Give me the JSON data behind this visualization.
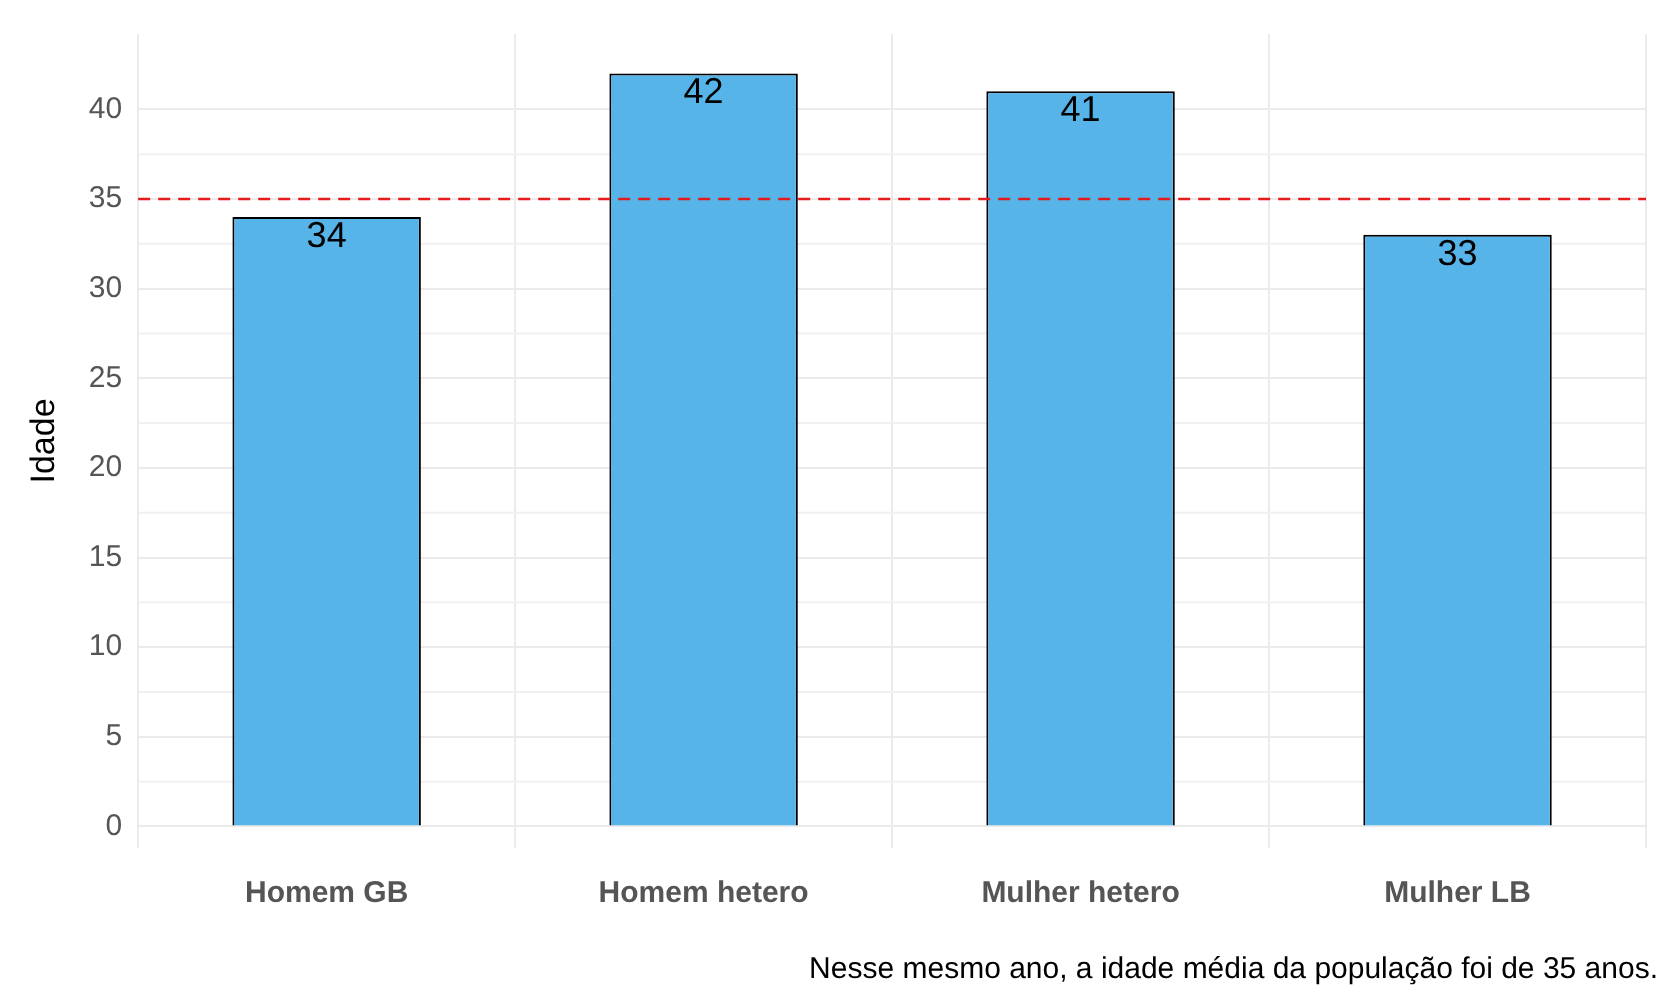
{
  "chart_data": {
    "type": "bar",
    "ylabel": "Idade",
    "categories": [
      "Homem GB",
      "Homem hetero",
      "Mulher hetero",
      "Mulher LB"
    ],
    "values": [
      34,
      42,
      41,
      33
    ],
    "color": "#56b4e9",
    "ylim": [
      -1.2,
      44.2
    ],
    "yticks": [
      0,
      5,
      10,
      15,
      20,
      25,
      30,
      35,
      40
    ],
    "grid": true,
    "data_labels": true,
    "legend": false,
    "ref_lines": [
      {
        "axis": "y",
        "value": 35,
        "color": "#e41a1c",
        "line_style": "dashed"
      }
    ],
    "annotations": [
      "Nesse mesmo ano, a idade média da população foi de 35 anos."
    ]
  }
}
